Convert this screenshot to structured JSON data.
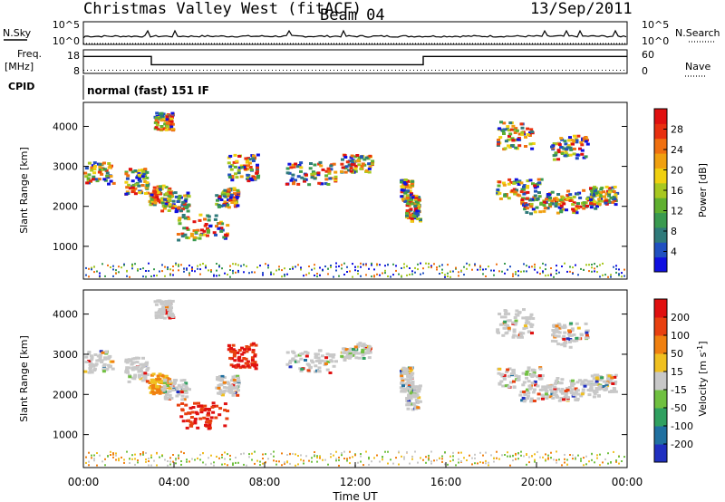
{
  "header": {
    "station": "Christmas Valley West (fitACF)",
    "beam": "Beam 04",
    "date": "13/Sep/2011"
  },
  "chart_data": [
    {
      "type": "line",
      "panel": "noise",
      "left_label": "N.Sky",
      "right_label": "N.Search",
      "left_ticks": [
        "10^5",
        "10^0"
      ],
      "right_ticks": [
        "10^5",
        "10^0"
      ]
    },
    {
      "type": "line",
      "panel": "frequency",
      "left_label_lines": [
        "Freq.",
        "[MHz]"
      ],
      "right_label": "Nave",
      "left_ticks": [
        "18",
        "8"
      ],
      "right_ticks": [
        "60",
        "0"
      ],
      "series": [
        {
          "name": "Freq.",
          "x": [
            0,
            3.0,
            3.0,
            15.0,
            15.0,
            24
          ],
          "y": [
            15.2,
            15.2,
            11.7,
            11.7,
            15.2,
            15.2
          ]
        }
      ],
      "nave_level": 8
    },
    {
      "type": "text",
      "panel": "cpid",
      "label": "CPID",
      "text": "normal (fast) 151 IF"
    },
    {
      "type": "heatmap",
      "panel": "power",
      "ylabel": "Slant Range [km]",
      "yticks": [
        "4000",
        "3000",
        "2000",
        "1000"
      ],
      "ytick_values": [
        4000,
        3000,
        2000,
        1000
      ],
      "ylim": [
        180,
        4600
      ],
      "xlim": [
        0,
        24
      ],
      "colorbar": {
        "label": "Power [dB]",
        "ticks": [
          "28",
          "24",
          "20",
          "16",
          "12",
          "8",
          "4"
        ],
        "tick_values": [
          28,
          24,
          20,
          16,
          12,
          8,
          4
        ],
        "range": [
          0,
          32
        ],
        "colors": [
          "#1010e0",
          "#2050c0",
          "#2f7a7a",
          "#3a9a50",
          "#60b030",
          "#a8c820",
          "#f0d010",
          "#f0a010",
          "#f07010",
          "#e83010",
          "#e01010"
        ]
      }
    },
    {
      "type": "heatmap",
      "panel": "velocity",
      "ylabel": "Slant Range [km]",
      "yticks": [
        "4000",
        "3000",
        "2000",
        "1000"
      ],
      "ytick_values": [
        4000,
        3000,
        2000,
        1000
      ],
      "ylim": [
        180,
        4600
      ],
      "xlim": [
        0,
        24
      ],
      "xticks": [
        "00:00",
        "04:00",
        "08:00",
        "12:00",
        "16:00",
        "20:00",
        "00:00"
      ],
      "xtick_values": [
        0,
        4,
        8,
        12,
        16,
        20,
        24
      ],
      "xlabel": "Time UT",
      "colorbar": {
        "label": "Velocity [m s^-1]",
        "ticks": [
          "200",
          "100",
          "50",
          "15",
          "-15",
          "-50",
          "-100",
          "-200"
        ],
        "colors": [
          "#2030c0",
          "#2070a0",
          "#30a060",
          "#70c040",
          "#c8c8c8",
          "#f0c020",
          "#f08010",
          "#e84010",
          "#e01010"
        ]
      }
    }
  ],
  "colors": {
    "axis": "#000000",
    "ground_scatter": "#c8c8c8",
    "background": "#ffffff"
  }
}
